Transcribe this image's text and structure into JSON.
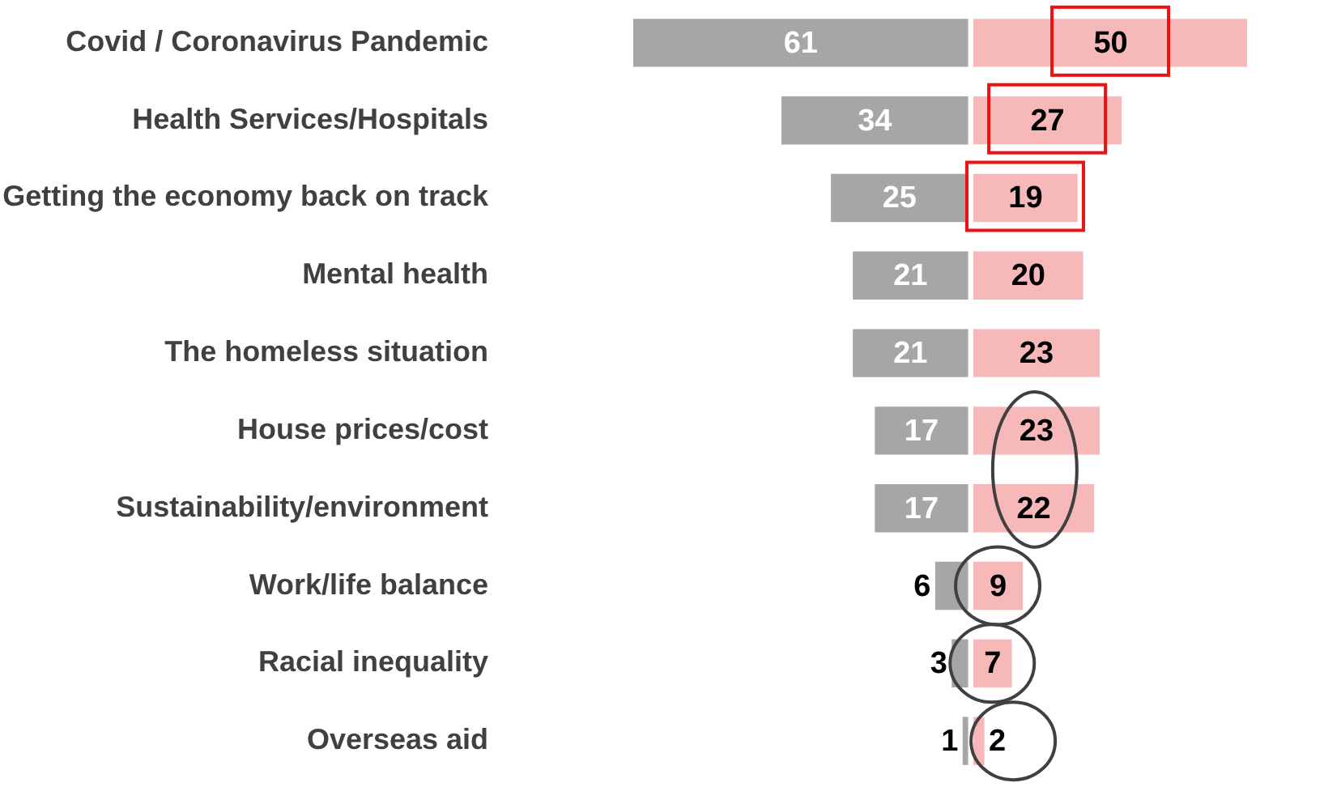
{
  "chart_data": [
    {
      "type": "bar",
      "orientation": "horizontal",
      "tick_labels": "y",
      "data_labels": true,
      "xlim": [
        61,
        0
      ],
      "categories": [
        "Covid / Coronavirus Pandemic",
        "Health Services/Hospitals",
        "Getting the economy back on track",
        "Mental health",
        "The homeless situation",
        "House prices/cost",
        "Sustainability/environment",
        "Work/life balance",
        "Racial inequality",
        "Overseas aid"
      ],
      "series": [
        {
          "color": "#a6a6a6",
          "values": [
            61,
            34,
            25,
            21,
            21,
            17,
            17,
            6,
            3,
            1
          ]
        }
      ]
    },
    {
      "type": "bar",
      "orientation": "horizontal",
      "tick_labels": false,
      "data_labels": true,
      "xlim": [
        0,
        50
      ],
      "categories": [
        "Covid / Coronavirus Pandemic",
        "Health Services/Hospitals",
        "Getting the economy back on track",
        "Mental health",
        "The homeless situation",
        "House prices/cost",
        "Sustainability/environment",
        "Work/life balance",
        "Racial inequality",
        "Overseas aid"
      ],
      "series": [
        {
          "color": "#f6b8b8",
          "values": [
            50,
            27,
            19,
            20,
            23,
            23,
            22,
            9,
            7,
            2
          ]
        }
      ]
    }
  ]
}
